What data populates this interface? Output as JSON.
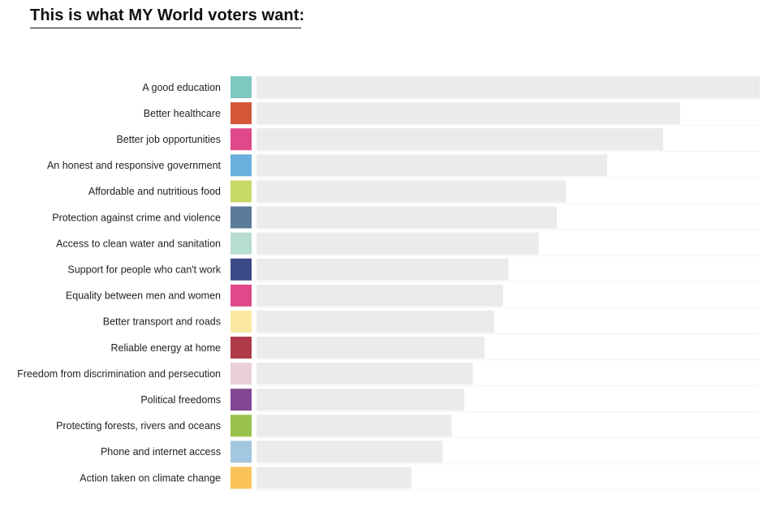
{
  "title": "This is what MY World voters want:",
  "chart_data": {
    "type": "bar",
    "orientation": "horizontal",
    "title": "This is what MY World voters want:",
    "xlabel": "",
    "ylabel": "",
    "grid": false,
    "legend": "none",
    "xlim": [
      0,
      100
    ],
    "track_color": "#ebebeb",
    "categories": [
      "A good education",
      "Better healthcare",
      "Better job opportunities",
      "An honest and responsive government",
      "Affordable and nutritious food",
      "Protection against crime and violence",
      "Access to clean water and sanitation",
      "Support for people who can't work",
      "Equality between men and women",
      "Better transport and roads",
      "Reliable energy at home",
      "Freedom from discrimination and persecution",
      "Political freedoms",
      "Protecting forests, rivers and oceans",
      "Phone and internet access",
      "Action taken on climate change"
    ],
    "values": [
      100,
      84.2,
      80.8,
      69.7,
      61.5,
      59.7,
      56.1,
      50.1,
      49.0,
      47.2,
      45.3,
      43.0,
      41.3,
      38.8,
      37.0,
      30.8
    ],
    "colors": [
      "#7ec8c2",
      "#d35736",
      "#e0488b",
      "#6ab0de",
      "#c7d966",
      "#5a7b9a",
      "#b6ddd0",
      "#3b4a87",
      "#e0488b",
      "#fbe8a0",
      "#b0394a",
      "#ead0d6",
      "#834693",
      "#99c24d",
      "#a3c7e0",
      "#f9c35a"
    ]
  }
}
